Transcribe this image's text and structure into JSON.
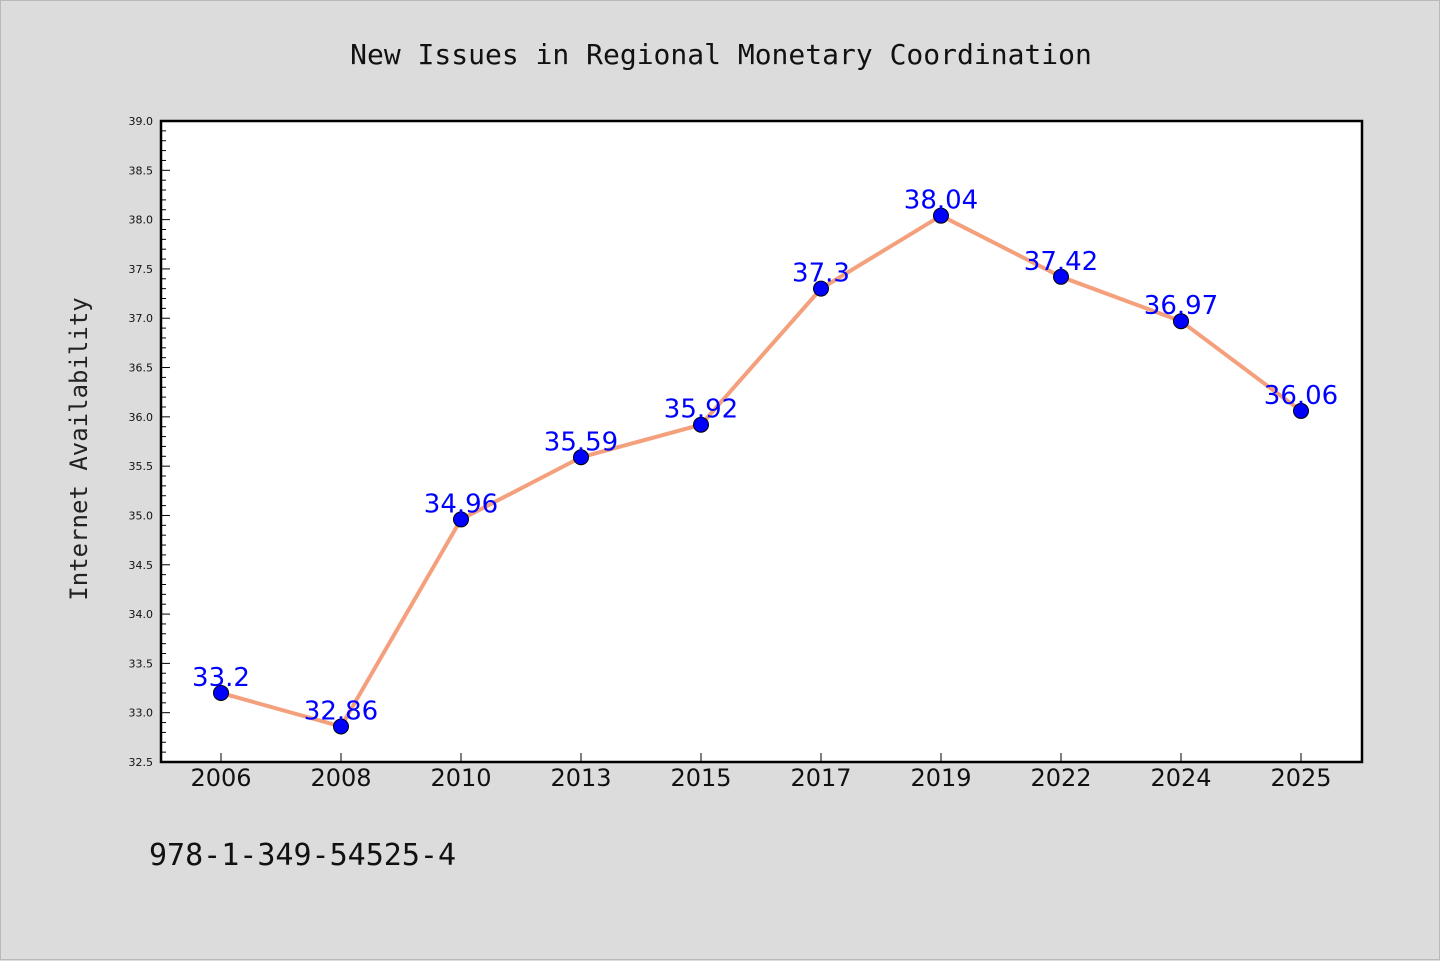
{
  "chart_data": {
    "type": "line",
    "title": "New Issues in Regional Monetary Coordination",
    "xlabel": "",
    "ylabel": "Internet Availability",
    "categories": [
      "2006",
      "2008",
      "2010",
      "2013",
      "2015",
      "2017",
      "2019",
      "2022",
      "2024",
      "2025"
    ],
    "values": [
      33.2,
      32.86,
      34.96,
      35.59,
      35.92,
      37.3,
      38.04,
      37.42,
      36.97,
      36.06
    ],
    "data_labels": [
      "33.2",
      "32.86",
      "34.96",
      "35.59",
      "35.92",
      "37.3",
      "38.04",
      "37.42",
      "36.97",
      "36.06"
    ],
    "ylim": [
      32.5,
      39.0
    ],
    "yticks": [
      "32.5",
      "33.0",
      "33.5",
      "34.0",
      "34.5",
      "35.0",
      "35.5",
      "36.0",
      "36.5",
      "37.0",
      "37.5",
      "38.0",
      "38.5",
      "39.0"
    ],
    "grid": false,
    "legend": "none",
    "colors": {
      "line": "#f4a07c",
      "marker": "#0000ff",
      "label": "#0000ff",
      "background": "#dcdcdc",
      "plot_background": "#ffffff"
    }
  },
  "footer_text": "978-1-349-54525-4"
}
